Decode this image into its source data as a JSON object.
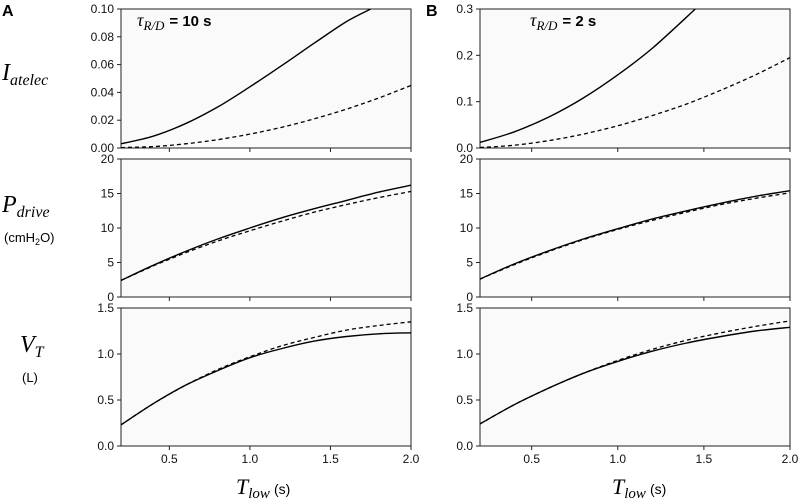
{
  "figure": {
    "panel_a_letter": "A",
    "panel_b_letter": "B",
    "tau_a": {
      "symbol": "τ",
      "subscript": "R/D",
      "value_text": "= 10 s"
    },
    "tau_b": {
      "symbol": "τ",
      "subscript": "R/D",
      "value_text": "= 2 s"
    },
    "y_labels": {
      "row0": {
        "main": "I",
        "sub": "atelec",
        "unit": ""
      },
      "row1": {
        "main": "P",
        "sub": "drive",
        "unit_pre": "(cmH",
        "unit_sub": "2",
        "unit_post": "O)"
      },
      "row2": {
        "main": "V",
        "sub": "T",
        "unit": "(L)"
      }
    },
    "x_label": {
      "main": "T",
      "sub": "low",
      "unit": "(s)"
    }
  },
  "chart_data": [
    {
      "id": "A-Iatelec",
      "type": "line",
      "panel": "A",
      "row": 0,
      "title": "",
      "xlabel": "T_low (s)",
      "ylabel": "I_atelec",
      "xlim": [
        0.2,
        2.0
      ],
      "ylim": [
        0,
        0.1
      ],
      "xticks": [],
      "xtick_labels": [],
      "yticks": [
        0,
        0.02,
        0.04,
        0.06,
        0.08,
        0.1
      ],
      "ytick_labels": [
        "0.00",
        "0.02",
        "0.04",
        "0.06",
        "0.08",
        "0.10"
      ],
      "series": [
        {
          "name": "solid",
          "style": "solid",
          "x": [
            0.2,
            0.4,
            0.6,
            0.8,
            1.0,
            1.2,
            1.4,
            1.6,
            1.75
          ],
          "y": [
            0.003,
            0.0085,
            0.0175,
            0.0295,
            0.044,
            0.0595,
            0.0755,
            0.091,
            0.1
          ]
        },
        {
          "name": "dashed",
          "style": "dashed",
          "x": [
            0.2,
            0.4,
            0.6,
            0.8,
            1.0,
            1.2,
            1.4,
            1.6,
            1.8,
            2.0
          ],
          "y": [
            0.0003,
            0.001,
            0.003,
            0.006,
            0.01,
            0.015,
            0.021,
            0.028,
            0.036,
            0.045
          ]
        }
      ]
    },
    {
      "id": "B-Iatelec",
      "type": "line",
      "panel": "B",
      "row": 0,
      "title": "",
      "xlabel": "T_low (s)",
      "ylabel": "I_atelec",
      "xlim": [
        0.2,
        2.0
      ],
      "ylim": [
        0,
        0.3
      ],
      "xticks": [],
      "xtick_labels": [],
      "yticks": [
        0,
        0.1,
        0.2,
        0.3
      ],
      "ytick_labels": [
        "0.0",
        "0.1",
        "0.2",
        "0.3"
      ],
      "series": [
        {
          "name": "solid",
          "style": "solid",
          "x": [
            0.2,
            0.4,
            0.6,
            0.8,
            1.0,
            1.2,
            1.45
          ],
          "y": [
            0.012,
            0.035,
            0.067,
            0.108,
            0.158,
            0.215,
            0.3
          ]
        },
        {
          "name": "dashed",
          "style": "dashed",
          "x": [
            0.2,
            0.4,
            0.6,
            0.8,
            1.0,
            1.2,
            1.4,
            1.6,
            1.8,
            2.0
          ],
          "y": [
            0.001,
            0.006,
            0.016,
            0.03,
            0.048,
            0.07,
            0.095,
            0.125,
            0.158,
            0.195
          ]
        }
      ]
    },
    {
      "id": "A-Pdrive",
      "type": "line",
      "panel": "A",
      "row": 1,
      "title": "",
      "xlabel": "T_low (s)",
      "ylabel": "P_drive (cmH2O)",
      "xlim": [
        0.2,
        2.0
      ],
      "ylim": [
        0,
        20
      ],
      "xticks": [],
      "xtick_labels": [],
      "yticks": [
        0,
        5,
        10,
        15,
        20
      ],
      "ytick_labels": [
        "0",
        "5",
        "10",
        "15",
        "20"
      ],
      "series": [
        {
          "name": "solid",
          "style": "solid",
          "x": [
            0.2,
            0.4,
            0.6,
            0.8,
            1.0,
            1.2,
            1.4,
            1.6,
            1.8,
            2.0
          ],
          "y": [
            2.4,
            4.6,
            6.6,
            8.4,
            10.0,
            11.5,
            12.8,
            14.0,
            15.2,
            16.2
          ]
        },
        {
          "name": "dashed",
          "style": "dashed",
          "x": [
            0.2,
            0.4,
            0.6,
            0.8,
            1.0,
            1.2,
            1.4,
            1.6,
            1.8,
            2.0
          ],
          "y": [
            2.4,
            4.5,
            6.4,
            8.1,
            9.6,
            11.0,
            12.3,
            13.4,
            14.4,
            15.3
          ]
        }
      ]
    },
    {
      "id": "B-Pdrive",
      "type": "line",
      "panel": "B",
      "row": 1,
      "title": "",
      "xlabel": "T_low (s)",
      "ylabel": "P_drive (cmH2O)",
      "xlim": [
        0.2,
        2.0
      ],
      "ylim": [
        0,
        20
      ],
      "xticks": [],
      "xtick_labels": [],
      "yticks": [
        0,
        5,
        10,
        15,
        20
      ],
      "ytick_labels": [
        "0",
        "5",
        "10",
        "15",
        "20"
      ],
      "series": [
        {
          "name": "solid",
          "style": "solid",
          "x": [
            0.2,
            0.4,
            0.6,
            0.8,
            1.0,
            1.2,
            1.4,
            1.6,
            1.8,
            2.0
          ],
          "y": [
            2.6,
            4.8,
            6.7,
            8.4,
            9.9,
            11.3,
            12.5,
            13.6,
            14.6,
            15.4
          ]
        },
        {
          "name": "dashed",
          "style": "dashed",
          "x": [
            0.2,
            0.4,
            0.6,
            0.8,
            1.0,
            1.2,
            1.4,
            1.6,
            1.8,
            2.0
          ],
          "y": [
            2.6,
            4.7,
            6.6,
            8.3,
            9.8,
            11.1,
            12.3,
            13.4,
            14.3,
            15.1
          ]
        }
      ]
    },
    {
      "id": "A-VT",
      "type": "line",
      "panel": "A",
      "row": 2,
      "title": "",
      "xlabel": "T_low (s)",
      "ylabel": "V_T (L)",
      "xlim": [
        0.2,
        2.0
      ],
      "ylim": [
        0,
        1.5
      ],
      "xticks": [
        0.5,
        1.0,
        1.5,
        2.0
      ],
      "xtick_labels": [
        "0.5",
        "1.0",
        "1.5",
        "2.0"
      ],
      "yticks": [
        0,
        0.5,
        1.0,
        1.5
      ],
      "ytick_labels": [
        "0.0",
        "0.5",
        "1.0",
        "1.5"
      ],
      "series": [
        {
          "name": "solid",
          "style": "solid",
          "x": [
            0.2,
            0.4,
            0.6,
            0.8,
            1.0,
            1.2,
            1.4,
            1.6,
            1.8,
            2.0
          ],
          "y": [
            0.23,
            0.46,
            0.66,
            0.82,
            0.96,
            1.06,
            1.14,
            1.19,
            1.22,
            1.23
          ]
        },
        {
          "name": "dashed",
          "style": "dashed",
          "x": [
            0.2,
            0.4,
            0.6,
            0.8,
            1.0,
            1.2,
            1.4,
            1.6,
            1.8,
            2.0
          ],
          "y": [
            0.23,
            0.46,
            0.66,
            0.83,
            0.97,
            1.09,
            1.18,
            1.26,
            1.31,
            1.35
          ]
        }
      ]
    },
    {
      "id": "B-VT",
      "type": "line",
      "panel": "B",
      "row": 2,
      "title": "",
      "xlabel": "T_low (s)",
      "ylabel": "V_T (L)",
      "xlim": [
        0.2,
        2.0
      ],
      "ylim": [
        0,
        1.5
      ],
      "xticks": [
        0.5,
        1.0,
        1.5,
        2.0
      ],
      "xtick_labels": [
        "0.5",
        "1.0",
        "1.5",
        "2.0"
      ],
      "yticks": [
        0,
        0.5,
        1.0,
        1.5
      ],
      "ytick_labels": [
        "0.0",
        "0.5",
        "1.0",
        "1.5"
      ],
      "series": [
        {
          "name": "solid",
          "style": "solid",
          "x": [
            0.2,
            0.4,
            0.6,
            0.8,
            1.0,
            1.2,
            1.4,
            1.6,
            1.8,
            2.0
          ],
          "y": [
            0.24,
            0.45,
            0.63,
            0.79,
            0.92,
            1.03,
            1.12,
            1.19,
            1.25,
            1.29
          ]
        },
        {
          "name": "dashed",
          "style": "dashed",
          "x": [
            0.2,
            0.4,
            0.6,
            0.8,
            1.0,
            1.2,
            1.4,
            1.6,
            1.8,
            2.0
          ],
          "y": [
            0.24,
            0.45,
            0.63,
            0.79,
            0.93,
            1.05,
            1.15,
            1.23,
            1.3,
            1.36
          ]
        }
      ]
    }
  ]
}
